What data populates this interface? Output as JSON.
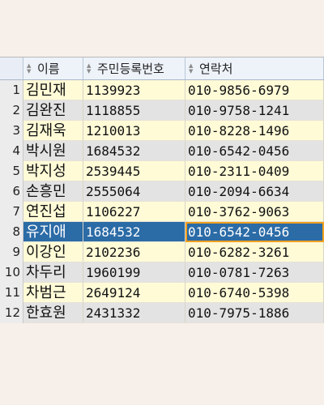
{
  "columns": [
    {
      "label": "이름"
    },
    {
      "label": "주민등록번호"
    },
    {
      "label": "연락처"
    }
  ],
  "selected_row": 8,
  "rows": [
    {
      "num": "1",
      "name": "김민재",
      "id": "1139923",
      "phone": "010-9856-6979"
    },
    {
      "num": "2",
      "name": "김완진",
      "id": "1118855",
      "phone": "010-9758-1241"
    },
    {
      "num": "3",
      "name": "김재욱",
      "id": "1210013",
      "phone": "010-8228-1496"
    },
    {
      "num": "4",
      "name": "박시원",
      "id": "1684532",
      "phone": "010-6542-0456"
    },
    {
      "num": "5",
      "name": "박지성",
      "id": "2539445",
      "phone": "010-2311-0409"
    },
    {
      "num": "6",
      "name": "손흥민",
      "id": "2555064",
      "phone": "010-2094-6634"
    },
    {
      "num": "7",
      "name": "연진섭",
      "id": "1106227",
      "phone": "010-3762-9063"
    },
    {
      "num": "8",
      "name": "유지애",
      "id": "1684532",
      "phone": "010-6542-0456"
    },
    {
      "num": "9",
      "name": "이강인",
      "id": "2102236",
      "phone": "010-6282-3261"
    },
    {
      "num": "10",
      "name": "차두리",
      "id": "1960199",
      "phone": "010-0781-7263"
    },
    {
      "num": "11",
      "name": "차범근",
      "id": "2649124",
      "phone": "010-6740-5398"
    },
    {
      "num": "12",
      "name": "한효원",
      "id": "2431332",
      "phone": "010-7975-1886"
    }
  ]
}
